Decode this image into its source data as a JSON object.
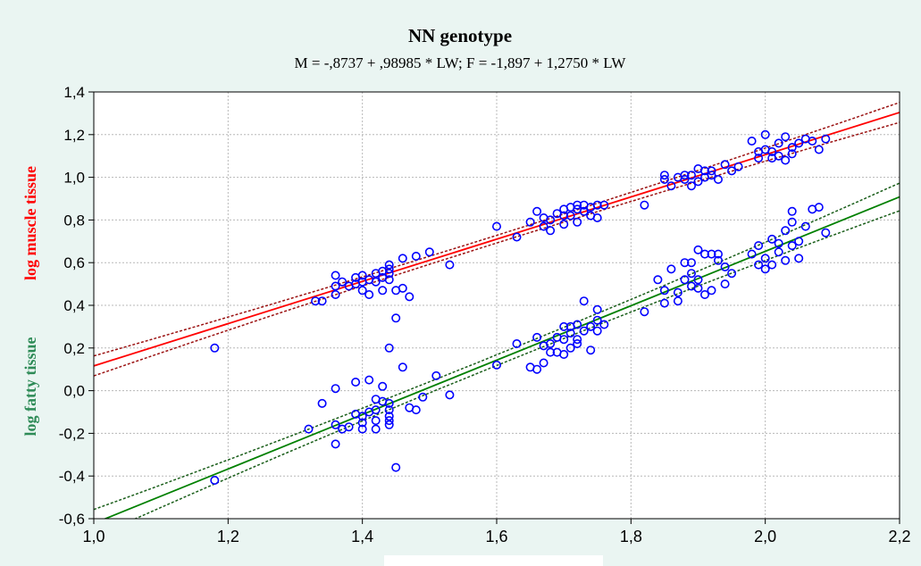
{
  "chart_data": {
    "type": "scatter",
    "title": "NN genotype",
    "subtitle": "M = -,8737 + ,98985 * LW; F = -1,897 + 1,2750 * LW",
    "xlabel": "",
    "ylabel_top": "log muscle tissue",
    "ylabel_bottom": "log fatty tissue",
    "xlim": [
      1.0,
      2.2
    ],
    "ylim": [
      -0.6,
      1.4
    ],
    "x_ticks": [
      "1,0",
      "1,2",
      "1,4",
      "1,6",
      "1,8",
      "2,0",
      "2,2"
    ],
    "y_ticks": [
      "-0,6",
      "-0,4",
      "-0,2",
      "0,0",
      "0,2",
      "0,4",
      "0,6",
      "0,8",
      "1,0",
      "1,2",
      "1,4"
    ],
    "grid": true,
    "colors": {
      "muscle_line": "#ff0000",
      "muscle_ci": "#9b1212",
      "fatty_line": "#008000",
      "fatty_ci": "#1a5e1a",
      "points": "#0000ff",
      "ylabel_top": "#ff0000",
      "ylabel_bottom": "#2e8b57",
      "background": "#eaf5f2",
      "plot_bg": "#ffffff",
      "grid": "#b8b8b8"
    },
    "regressions": [
      {
        "intercept": -0.8737,
        "slope": 0.98985,
        "ci_halfwidth": 0.018
      },
      {
        "intercept": -1.897,
        "slope": 1.275,
        "ci_halfwidth": 0.025
      }
    ],
    "series": [
      {
        "points": [
          [
            1.33,
            0.42
          ],
          [
            1.34,
            0.42
          ],
          [
            1.36,
            0.45
          ],
          [
            1.36,
            0.49
          ],
          [
            1.36,
            0.54
          ],
          [
            1.37,
            0.51
          ],
          [
            1.38,
            0.49
          ],
          [
            1.39,
            0.5
          ],
          [
            1.39,
            0.53
          ],
          [
            1.4,
            0.54
          ],
          [
            1.4,
            0.51
          ],
          [
            1.4,
            0.47
          ],
          [
            1.41,
            0.45
          ],
          [
            1.41,
            0.52
          ],
          [
            1.42,
            0.55
          ],
          [
            1.42,
            0.51
          ],
          [
            1.43,
            0.47
          ],
          [
            1.43,
            0.53
          ],
          [
            1.44,
            0.59
          ],
          [
            1.44,
            0.57
          ],
          [
            1.44,
            0.52
          ],
          [
            1.45,
            0.47
          ],
          [
            1.46,
            0.48
          ],
          [
            1.47,
            0.44
          ],
          [
            1.48,
            0.63
          ],
          [
            1.5,
            0.65
          ],
          [
            1.53,
            0.59
          ],
          [
            1.44,
            0.55
          ],
          [
            1.43,
            0.56
          ],
          [
            1.46,
            0.62
          ],
          [
            1.6,
            0.77
          ],
          [
            1.63,
            0.72
          ],
          [
            1.65,
            0.79
          ],
          [
            1.66,
            0.84
          ],
          [
            1.67,
            0.77
          ],
          [
            1.67,
            0.81
          ],
          [
            1.68,
            0.8
          ],
          [
            1.69,
            0.83
          ],
          [
            1.7,
            0.78
          ],
          [
            1.7,
            0.85
          ],
          [
            1.71,
            0.86
          ],
          [
            1.71,
            0.82
          ],
          [
            1.72,
            0.79
          ],
          [
            1.72,
            0.87
          ],
          [
            1.73,
            0.84
          ],
          [
            1.73,
            0.87
          ],
          [
            1.74,
            0.86
          ],
          [
            1.74,
            0.82
          ],
          [
            1.75,
            0.87
          ],
          [
            1.75,
            0.81
          ],
          [
            1.76,
            0.87
          ],
          [
            1.68,
            0.75
          ],
          [
            1.7,
            0.82
          ],
          [
            1.72,
            0.85
          ],
          [
            1.82,
            0.87
          ],
          [
            1.85,
            0.99
          ],
          [
            1.85,
            1.01
          ],
          [
            1.86,
            0.96
          ],
          [
            1.87,
            1.0
          ],
          [
            1.88,
            1.01
          ],
          [
            1.88,
            0.99
          ],
          [
            1.89,
            0.96
          ],
          [
            1.89,
            1.01
          ],
          [
            1.9,
            1.04
          ],
          [
            1.9,
            0.98
          ],
          [
            1.91,
            1.03
          ],
          [
            1.91,
            1.0
          ],
          [
            1.92,
            1.01
          ],
          [
            1.92,
            1.03
          ],
          [
            1.93,
            0.99
          ],
          [
            1.94,
            1.06
          ],
          [
            1.95,
            1.03
          ],
          [
            1.96,
            1.05
          ],
          [
            1.98,
            1.17
          ],
          [
            1.99,
            1.09
          ],
          [
            1.99,
            1.12
          ],
          [
            2.0,
            1.13
          ],
          [
            2.0,
            1.2
          ],
          [
            2.01,
            1.09
          ],
          [
            2.01,
            1.12
          ],
          [
            2.02,
            1.16
          ],
          [
            2.02,
            1.1
          ],
          [
            2.03,
            1.08
          ],
          [
            2.03,
            1.19
          ],
          [
            2.04,
            1.11
          ],
          [
            2.04,
            1.14
          ],
          [
            2.05,
            1.16
          ],
          [
            2.06,
            1.18
          ],
          [
            2.07,
            1.17
          ],
          [
            2.08,
            1.13
          ],
          [
            2.09,
            1.18
          ],
          [
            1.18,
            0.2
          ]
        ]
      },
      {
        "points": [
          [
            1.18,
            -0.42
          ],
          [
            1.32,
            -0.18
          ],
          [
            1.34,
            -0.06
          ],
          [
            1.36,
            -0.16
          ],
          [
            1.36,
            -0.25
          ],
          [
            1.36,
            0.01
          ],
          [
            1.37,
            -0.18
          ],
          [
            1.38,
            -0.17
          ],
          [
            1.39,
            -0.11
          ],
          [
            1.39,
            0.04
          ],
          [
            1.4,
            -0.15
          ],
          [
            1.4,
            -0.18
          ],
          [
            1.4,
            -0.12
          ],
          [
            1.41,
            -0.1
          ],
          [
            1.41,
            0.05
          ],
          [
            1.42,
            -0.09
          ],
          [
            1.42,
            -0.14
          ],
          [
            1.42,
            -0.18
          ],
          [
            1.43,
            -0.05
          ],
          [
            1.43,
            0.02
          ],
          [
            1.44,
            -0.06
          ],
          [
            1.44,
            -0.12
          ],
          [
            1.44,
            -0.14
          ],
          [
            1.44,
            -0.16
          ],
          [
            1.44,
            0.2
          ],
          [
            1.45,
            0.34
          ],
          [
            1.46,
            0.11
          ],
          [
            1.47,
            -0.08
          ],
          [
            1.48,
            -0.09
          ],
          [
            1.49,
            -0.03
          ],
          [
            1.45,
            -0.36
          ],
          [
            1.51,
            0.07
          ],
          [
            1.53,
            -0.02
          ],
          [
            1.42,
            -0.04
          ],
          [
            1.44,
            -0.09
          ],
          [
            1.6,
            0.12
          ],
          [
            1.63,
            0.22
          ],
          [
            1.65,
            0.11
          ],
          [
            1.66,
            0.1
          ],
          [
            1.66,
            0.25
          ],
          [
            1.67,
            0.13
          ],
          [
            1.67,
            0.21
          ],
          [
            1.68,
            0.18
          ],
          [
            1.68,
            0.22
          ],
          [
            1.69,
            0.25
          ],
          [
            1.69,
            0.18
          ],
          [
            1.7,
            0.3
          ],
          [
            1.7,
            0.24
          ],
          [
            1.7,
            0.17
          ],
          [
            1.71,
            0.27
          ],
          [
            1.71,
            0.2
          ],
          [
            1.72,
            0.31
          ],
          [
            1.72,
            0.24
          ],
          [
            1.73,
            0.42
          ],
          [
            1.73,
            0.28
          ],
          [
            1.74,
            0.3
          ],
          [
            1.74,
            0.19
          ],
          [
            1.75,
            0.38
          ],
          [
            1.75,
            0.33
          ],
          [
            1.75,
            0.28
          ],
          [
            1.76,
            0.31
          ],
          [
            1.72,
            0.22
          ],
          [
            1.71,
            0.3
          ],
          [
            1.82,
            0.37
          ],
          [
            1.84,
            0.52
          ],
          [
            1.85,
            0.41
          ],
          [
            1.85,
            0.47
          ],
          [
            1.86,
            0.57
          ],
          [
            1.87,
            0.42
          ],
          [
            1.87,
            0.46
          ],
          [
            1.88,
            0.6
          ],
          [
            1.88,
            0.52
          ],
          [
            1.89,
            0.55
          ],
          [
            1.89,
            0.49
          ],
          [
            1.9,
            0.48
          ],
          [
            1.9,
            0.66
          ],
          [
            1.9,
            0.52
          ],
          [
            1.91,
            0.64
          ],
          [
            1.91,
            0.45
          ],
          [
            1.92,
            0.47
          ],
          [
            1.92,
            0.64
          ],
          [
            1.93,
            0.61
          ],
          [
            1.94,
            0.58
          ],
          [
            1.94,
            0.5
          ],
          [
            1.95,
            0.55
          ],
          [
            1.98,
            0.64
          ],
          [
            1.99,
            0.59
          ],
          [
            1.99,
            0.68
          ],
          [
            2.0,
            0.57
          ],
          [
            2.0,
            0.62
          ],
          [
            2.01,
            0.59
          ],
          [
            2.01,
            0.71
          ],
          [
            2.02,
            0.65
          ],
          [
            2.02,
            0.69
          ],
          [
            2.03,
            0.75
          ],
          [
            2.03,
            0.61
          ],
          [
            2.04,
            0.79
          ],
          [
            2.04,
            0.68
          ],
          [
            2.04,
            0.84
          ],
          [
            2.05,
            0.7
          ],
          [
            2.05,
            0.62
          ],
          [
            2.06,
            0.77
          ],
          [
            2.07,
            0.85
          ],
          [
            2.08,
            0.86
          ],
          [
            2.09,
            0.74
          ],
          [
            1.89,
            0.6
          ],
          [
            1.93,
            0.64
          ]
        ]
      }
    ]
  }
}
